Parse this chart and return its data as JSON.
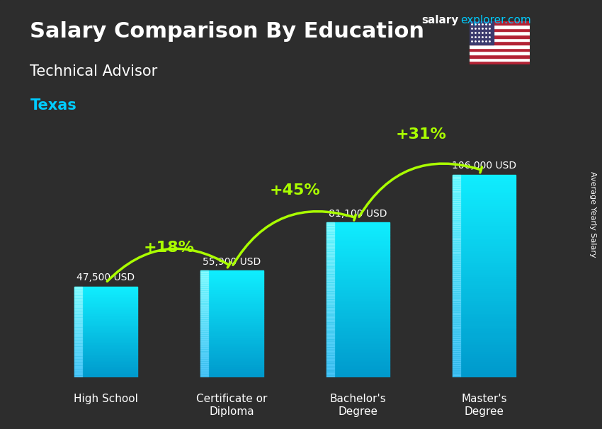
{
  "title": "Salary Comparison By Education",
  "subtitle": "Technical Advisor",
  "location": "Texas",
  "site_text": "salary",
  "site_text2": "explorer.com",
  "ylabel": "Average Yearly Salary",
  "categories": [
    "High School",
    "Certificate or\nDiploma",
    "Bachelor's\nDegree",
    "Master's\nDegree"
  ],
  "values": [
    47500,
    55900,
    81100,
    106000
  ],
  "value_labels": [
    "47,500 USD",
    "55,900 USD",
    "81,100 USD",
    "106,000 USD"
  ],
  "pct_labels": [
    "+18%",
    "+45%",
    "+31%"
  ],
  "bar_color_top": "#00d4ff",
  "bar_color_bottom": "#0077cc",
  "bar_color_mid": "#00aaee",
  "background_color": "#1a1a2e",
  "title_color": "#ffffff",
  "subtitle_color": "#ffffff",
  "location_color": "#00ccff",
  "value_label_color": "#ffffff",
  "pct_color": "#aaff00",
  "arrow_color": "#aaff00",
  "site_color1": "#ffffff",
  "site_color2": "#00ccff",
  "ylim": [
    0,
    130000
  ],
  "figsize": [
    8.5,
    6.06
  ],
  "dpi": 100
}
